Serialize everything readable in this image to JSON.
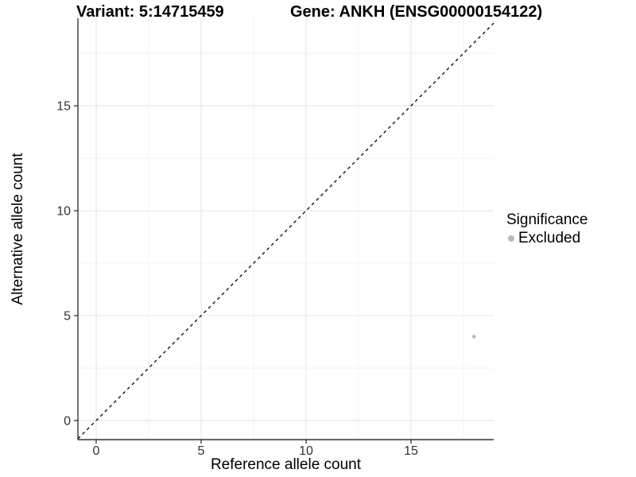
{
  "titles": {
    "variant": "Variant: 5:14715459",
    "gene": "Gene: ANKH (ENSG00000154122)"
  },
  "axes": {
    "x_label": "Reference allele count",
    "y_label": "Alternative allele count"
  },
  "legend": {
    "title": "Significance",
    "items": [
      {
        "label": "Excluded",
        "color": "#b9b9b9"
      }
    ]
  },
  "colors": {
    "point": "#b9b9b9",
    "reference_line": "#000000",
    "axis_line": "#333333",
    "tick_text": "#333333",
    "grid_major": "#e4e4e4",
    "grid_minor": "#f2f2f2",
    "background": "#ffffff"
  },
  "chart_data": {
    "type": "scatter",
    "title": "Variant: 5:14715459    Gene: ANKH (ENSG00000154122)",
    "xlabel": "Reference allele count",
    "ylabel": "Alternative allele count",
    "x_domain": [
      -0.87,
      18.94
    ],
    "y_domain": [
      -0.91,
      19.17
    ],
    "x_ticks": [
      0,
      5,
      10,
      15
    ],
    "y_ticks": [
      0,
      5,
      10,
      15
    ],
    "x_minor_ticks": [
      2.5,
      7.5,
      12.5,
      17.5
    ],
    "y_minor_ticks": [
      2.5,
      7.5,
      12.5,
      17.5
    ],
    "grid": true,
    "legend_position": "right",
    "series": [
      {
        "name": "Excluded",
        "color": "#b9b9b9",
        "points": [
          {
            "x": 18,
            "y": 4
          }
        ]
      }
    ],
    "reference_line": {
      "equation": "y = x",
      "style": "dashed",
      "color": "#000000"
    }
  }
}
